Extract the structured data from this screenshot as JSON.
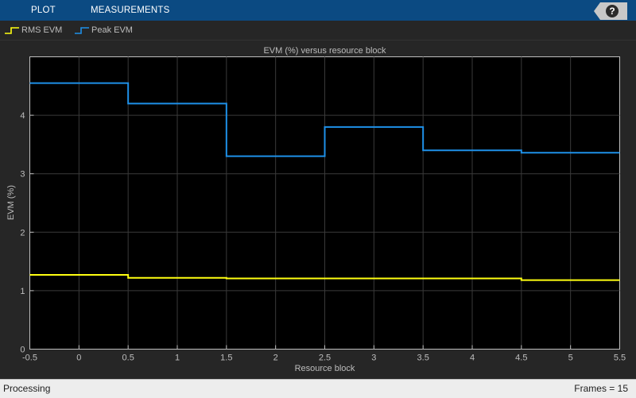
{
  "toolstrip": {
    "tabs": [
      {
        "label": "PLOT"
      },
      {
        "label": "MEASUREMENTS"
      }
    ],
    "help_label": "?"
  },
  "legend": {
    "items": [
      {
        "label": "RMS EVM",
        "color": "#ffff11"
      },
      {
        "label": "Peak EVM",
        "color": "#1e90e8"
      }
    ]
  },
  "chart_data": {
    "type": "line",
    "step": true,
    "title": "EVM (%) versus resource block",
    "xlabel": "Resource block",
    "ylabel": "EVM (%)",
    "xlim": [
      -0.5,
      5.5
    ],
    "ylim": [
      0,
      5
    ],
    "xticks": [
      -0.5,
      0,
      0.5,
      1,
      1.5,
      2,
      2.5,
      3,
      3.5,
      4,
      4.5,
      5,
      5.5
    ],
    "yticks": [
      0,
      1,
      2,
      3,
      4
    ],
    "grid": true,
    "legend_position": "top-left",
    "background": "#000000",
    "series": [
      {
        "name": "RMS EVM",
        "color": "#ffff11",
        "x": [
          0,
          1,
          2,
          3,
          4,
          5
        ],
        "values": [
          1.27,
          1.22,
          1.21,
          1.21,
          1.21,
          1.18
        ]
      },
      {
        "name": "Peak EVM",
        "color": "#1e90e8",
        "x": [
          0,
          1,
          2,
          3,
          4,
          5
        ],
        "values": [
          4.55,
          4.2,
          3.3,
          3.8,
          3.4,
          3.36
        ]
      }
    ]
  },
  "status": {
    "left": "Processing",
    "right": "Frames = 15"
  }
}
